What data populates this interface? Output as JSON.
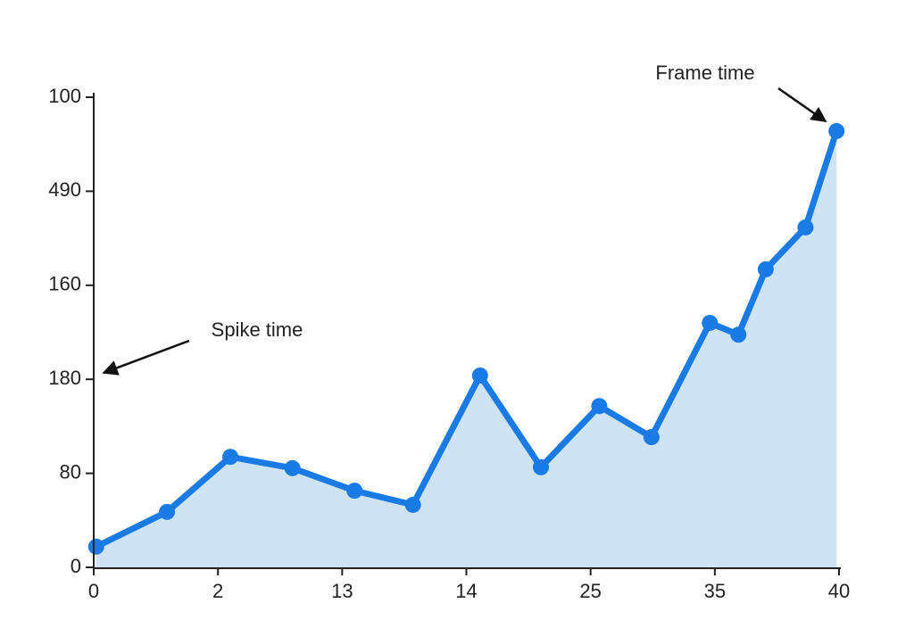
{
  "chart_data": {
    "type": "area-line",
    "annotations": [
      "Frame time",
      "Spike time"
    ],
    "x": [
      0.02,
      0.59,
      1.1,
      1.6,
      2.1,
      2.57,
      3.11,
      3.6,
      4.07,
      4.49,
      4.96,
      5.19,
      5.41,
      5.73,
      5.98
    ],
    "series": [
      {
        "color": "#1a7ae6",
        "values": [
          4.4,
          11.8,
          23.5,
          21.1,
          16.3,
          13.3,
          40.8,
          21.3,
          34.3,
          27.7,
          52.0,
          49.5,
          63.4,
          72.3,
          92.8
        ]
      }
    ],
    "fill": "#cfe3f7",
    "xlim": [
      0,
      6
    ],
    "xticks": [
      0,
      {
        "value": 1,
        "label": "2"
      },
      {
        "value": 2,
        "label": "13"
      },
      {
        "value": 3,
        "label": "14"
      },
      {
        "value": 4,
        "label": "25"
      },
      {
        "value": 5,
        "label": "35"
      },
      {
        "value": 6,
        "label": "40"
      }
    ],
    "ylim": [
      0,
      100
    ],
    "yticks": [
      0,
      {
        "value": 20,
        "label": "80"
      },
      {
        "value": 40,
        "label": "180"
      },
      {
        "value": 60,
        "label": "160"
      },
      {
        "value": 80,
        "label": "490"
      },
      100
    ]
  }
}
